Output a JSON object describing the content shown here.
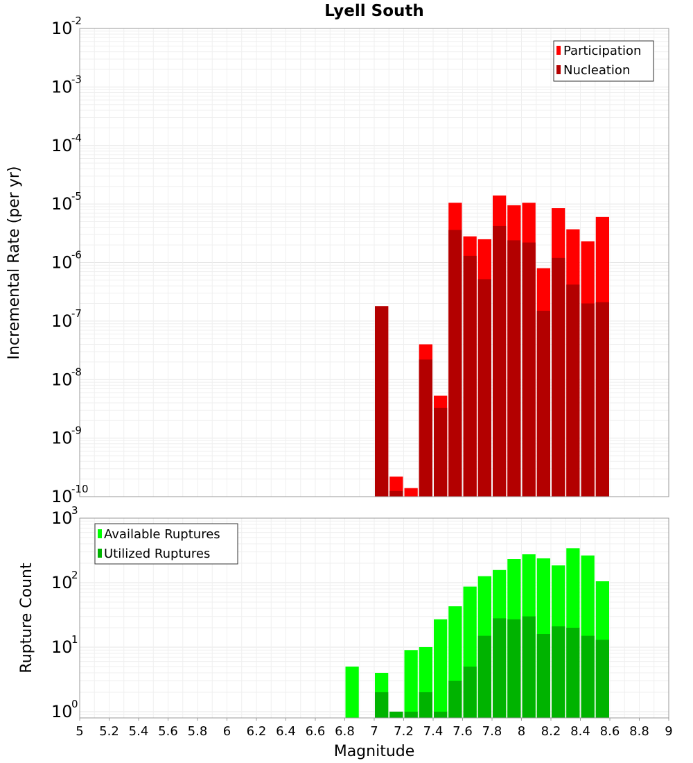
{
  "chart_data": [
    {
      "type": "bar",
      "title": "Lyell South",
      "xlabel": "Magnitude",
      "ylabel": "Incremental Rate (per yr)",
      "yscale": "log",
      "xlim": [
        5,
        9
      ],
      "ylim": [
        1e-10,
        0.01
      ],
      "grid": true,
      "legend_position": "top-right",
      "y_ticks": [
        {
          "base": "10",
          "exp": "-10"
        },
        {
          "base": "10",
          "exp": "-9"
        },
        {
          "base": "10",
          "exp": "-8"
        },
        {
          "base": "10",
          "exp": "-7"
        },
        {
          "base": "10",
          "exp": "-6"
        },
        {
          "base": "10",
          "exp": "-5"
        },
        {
          "base": "10",
          "exp": "-4"
        },
        {
          "base": "10",
          "exp": "-3"
        },
        {
          "base": "10",
          "exp": "-2"
        }
      ],
      "x": [
        7.0,
        7.1,
        7.2,
        7.3,
        7.4,
        7.5,
        7.6,
        7.7,
        7.8,
        7.9,
        8.0,
        8.1,
        8.2,
        8.3,
        8.4,
        8.5
      ],
      "series": [
        {
          "name": "Participation",
          "color": "#ff0000",
          "values": [
            1.8e-07,
            2.2e-10,
            1.4e-10,
            4e-08,
            5.3e-09,
            1.05e-05,
            2.8e-06,
            2.5e-06,
            1.4e-05,
            9.5e-06,
            1.05e-05,
            8e-07,
            8.5e-06,
            3.7e-06,
            2.3e-06,
            6e-06
          ]
        },
        {
          "name": "Nucleation",
          "color": "#b30000",
          "values": [
            1.8e-07,
            1.25e-10,
            1e-10,
            2.2e-08,
            3.3e-09,
            3.6e-06,
            1.3e-06,
            5.2e-07,
            4.2e-06,
            2.4e-06,
            2.2e-06,
            1.5e-07,
            1.2e-06,
            4.2e-07,
            2e-07,
            2.1e-07
          ]
        }
      ]
    },
    {
      "type": "bar",
      "xlabel": "Magnitude",
      "ylabel": "Rupture Count",
      "yscale": "log",
      "xlim": [
        5,
        9
      ],
      "ylim": [
        0.8,
        1000
      ],
      "grid": true,
      "legend_position": "top-left",
      "x_ticks": [
        "5",
        "5.2",
        "5.4",
        "5.6",
        "5.8",
        "6",
        "6.2",
        "6.4",
        "6.6",
        "6.8",
        "7",
        "7.2",
        "7.4",
        "7.6",
        "7.8",
        "8",
        "8.2",
        "8.4",
        "8.6",
        "8.8",
        "9"
      ],
      "y_ticks": [
        {
          "base": "10",
          "exp": "0"
        },
        {
          "base": "10",
          "exp": "1"
        },
        {
          "base": "10",
          "exp": "2"
        },
        {
          "base": "10",
          "exp": "3"
        }
      ],
      "x": [
        6.8,
        7.0,
        7.1,
        7.2,
        7.3,
        7.4,
        7.5,
        7.6,
        7.7,
        7.8,
        7.9,
        8.0,
        8.1,
        8.2,
        8.3,
        8.4,
        8.5
      ],
      "series": [
        {
          "name": "Available Ruptures",
          "color": "#00ff00",
          "values": [
            5,
            4,
            1,
            9,
            10,
            27,
            43,
            87,
            126,
            157,
            232,
            275,
            238,
            185,
            342,
            264,
            105
          ]
        },
        {
          "name": "Utilized Ruptures",
          "color": "#00b300",
          "values": [
            0,
            2,
            1,
            1,
            2,
            1,
            3,
            5,
            15,
            28,
            27,
            30,
            16,
            21,
            20,
            15,
            13
          ]
        }
      ]
    }
  ]
}
